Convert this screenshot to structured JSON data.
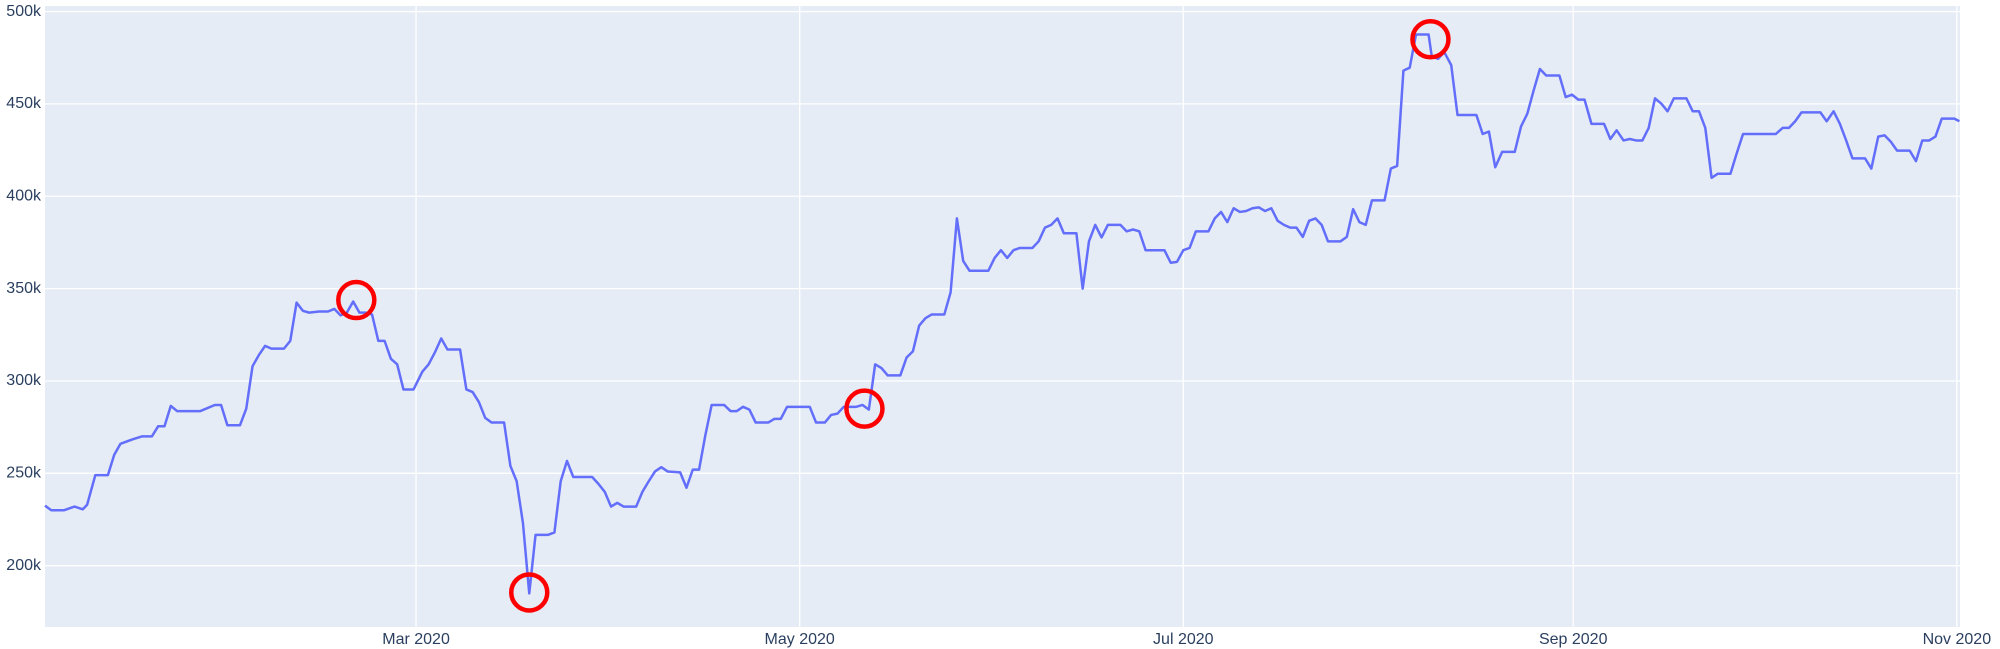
{
  "chart_data": {
    "type": "line",
    "x": [
      1,
      2,
      4,
      5.7,
      7,
      7.7,
      9,
      11,
      12,
      13,
      15,
      16.4,
      18,
      19,
      20,
      21,
      22,
      23.7,
      25.7,
      28,
      29,
      30,
      32,
      33,
      34,
      35,
      36,
      37,
      39,
      40,
      41,
      42,
      43,
      44.6,
      46,
      47,
      48,
      49,
      50,
      51,
      52,
      53,
      54,
      55,
      56,
      57,
      58,
      59.6,
      61,
      62,
      63,
      64,
      65,
      66,
      67,
      68,
      69,
      70,
      71,
      72,
      73,
      74,
      75,
      76,
      77,
      78,
      79,
      80,
      81,
      82,
      83,
      84,
      85,
      86,
      87,
      88,
      89,
      90,
      91,
      92,
      93,
      95,
      96,
      97,
      98,
      99,
      100,
      102,
      103,
      104,
      105,
      106,
      107,
      108,
      109,
      110,
      111,
      112,
      113,
      114,
      115,
      116,
      117,
      118,
      119,
      121,
      122.6,
      123.6,
      125,
      126,
      127,
      128,
      129,
      130,
      131,
      132,
      133,
      134,
      135,
      136,
      137,
      138,
      139,
      140,
      141,
      142,
      143,
      144,
      145,
      146,
      147,
      148,
      149,
      150,
      151,
      152,
      153,
      154,
      155,
      156,
      157,
      158,
      159,
      160,
      161,
      162,
      163,
      164,
      165,
      166,
      167,
      168,
      169,
      170,
      171,
      172,
      173,
      174,
      175,
      176,
      177,
      178,
      179,
      180,
      181,
      182,
      183,
      184,
      185,
      186,
      187,
      188,
      189,
      190,
      191,
      192,
      193,
      194,
      195,
      196,
      197,
      198,
      199,
      200,
      201,
      202,
      203,
      204,
      205,
      206,
      207,
      208,
      209,
      210,
      211,
      212,
      213,
      214,
      215,
      216,
      217,
      218,
      219,
      220,
      221,
      221.5,
      222.5,
      223.5,
      224.6,
      225.6,
      226.6,
      227.6,
      228.6,
      229.6,
      230.6,
      231.6,
      232.7,
      233.7,
      234.7,
      235.7,
      236.7,
      237.7,
      238.7,
      239.7,
      240.8,
      241.8,
      242.8,
      243.8,
      244.8,
      245.8,
      246.9,
      247.9,
      248.9,
      249.9,
      250.9,
      252,
      253,
      254,
      255,
      256,
      257,
      258,
      259,
      260,
      261,
      262,
      263,
      264,
      265,
      266,
      267,
      268,
      269,
      270,
      271,
      272.2,
      273.2,
      274.2,
      275.2,
      276.2,
      277.3,
      278.3,
      279.3,
      280.3,
      281.3,
      282.3,
      283.3,
      284.3,
      285.4,
      286.4,
      287.4,
      288.4,
      289.4,
      290.4,
      291.4,
      292.5,
      293.5,
      294.5,
      295.5,
      296.5,
      297.5,
      298.5,
      299.5,
      300.6,
      301.6,
      302.6,
      303.6,
      304.6,
      305.4
    ],
    "values": [
      232500,
      230000,
      230000,
      232000,
      230500,
      233000,
      249000,
      249000,
      260000,
      266000,
      268500,
      270000,
      270000,
      275500,
      275500,
      286500,
      283700,
      283700,
      283700,
      287000,
      287000,
      276000,
      276000,
      285000,
      308000,
      314000,
      319000,
      317500,
      317500,
      321700,
      342400,
      338000,
      337000,
      337600,
      337600,
      339000,
      335500,
      337000,
      343000,
      337000,
      337000,
      336000,
      321700,
      321700,
      312000,
      309000,
      295400,
      295400,
      305000,
      309000,
      315500,
      323000,
      317000,
      317000,
      317000,
      295400,
      294000,
      288500,
      280000,
      277500,
      277500,
      277500,
      254000,
      245700,
      223000,
      185000,
      216700,
      216700,
      216700,
      218000,
      245700,
      256700,
      248000,
      248000,
      248000,
      248000,
      244300,
      240000,
      232000,
      234000,
      232000,
      232000,
      240000,
      245700,
      251000,
      253300,
      251000,
      250500,
      242200,
      252000,
      252000,
      270600,
      287000,
      287000,
      287000,
      283700,
      283700,
      286000,
      284500,
      277500,
      277500,
      277500,
      279500,
      279500,
      286000,
      286000,
      286000,
      277500,
      277500,
      281600,
      282300,
      286000,
      286000,
      286000,
      287000,
      284500,
      309000,
      307000,
      303000,
      303000,
      303000,
      312700,
      316000,
      330000,
      334000,
      336000,
      336000,
      336000,
      348000,
      388000,
      365000,
      359700,
      359700,
      359700,
      359700,
      366600,
      370800,
      366600,
      370800,
      372000,
      372000,
      372000,
      375600,
      383000,
      384500,
      388000,
      380000,
      380000,
      380000,
      350000,
      375600,
      384500,
      377700,
      384500,
      384500,
      384500,
      381000,
      382000,
      381000,
      370800,
      370800,
      370800,
      370800,
      364000,
      364500,
      370800,
      372000,
      381000,
      381000,
      381000,
      388000,
      391500,
      386000,
      393500,
      391500,
      392000,
      393500,
      394000,
      392000,
      393500,
      386700,
      384500,
      383000,
      383000,
      378000,
      386700,
      388000,
      384500,
      375600,
      375600,
      375600,
      378000,
      393000,
      386000,
      384500,
      397800,
      397800,
      397800,
      415000,
      416400,
      468000,
      469600,
      487600,
      487600,
      487600,
      475800,
      474400,
      478000,
      471000,
      444000,
      444000,
      444000,
      444000,
      433700,
      435000,
      415700,
      424000,
      424000,
      424000,
      437800,
      444700,
      457200,
      468900,
      465400,
      465400,
      465400,
      453700,
      455000,
      452300,
      452300,
      439200,
      439200,
      439200,
      431000,
      435700,
      430200,
      431000,
      430200,
      430200,
      437000,
      453000,
      450200,
      446000,
      453000,
      453000,
      453000,
      446000,
      446000,
      437000,
      410000,
      412200,
      412200,
      412200,
      423300,
      433700,
      433700,
      433700,
      433700,
      433700,
      433700,
      437000,
      437000,
      440600,
      445400,
      445400,
      445400,
      445400,
      440600,
      446000,
      439200,
      430200,
      420500,
      420500,
      420500,
      415000,
      432300,
      433000,
      429500,
      424700,
      424700,
      424700,
      419000,
      430200,
      430200,
      432300,
      442000,
      442000,
      442000,
      440600
    ],
    "color": "#636efa",
    "highlights": {
      "x": [
        50.5,
        78,
        131.3,
        221.3
      ],
      "values": [
        343800,
        185500,
        285000,
        485000
      ],
      "color": "#ff0000"
    },
    "xlim": [
      1,
      305.5
    ],
    "xticks": [
      {
        "value": 60,
        "label": "Mar 2020"
      },
      {
        "value": 121,
        "label": "May 2020"
      },
      {
        "value": 182,
        "label": "Jul 2020"
      },
      {
        "value": 244,
        "label": "Sep 2020"
      },
      {
        "value": 305,
        "label": "Nov 2020"
      }
    ],
    "ylim": [
      166800,
      503000
    ],
    "yticks": [
      {
        "value": 200000,
        "label": "200k"
      },
      {
        "value": 250000,
        "label": "250k"
      },
      {
        "value": 300000,
        "label": "300k"
      },
      {
        "value": 350000,
        "label": "350k"
      },
      {
        "value": 400000,
        "label": "400k"
      },
      {
        "value": 450000,
        "label": "450k"
      },
      {
        "value": 500000,
        "label": "500k"
      }
    ],
    "grid": true
  }
}
